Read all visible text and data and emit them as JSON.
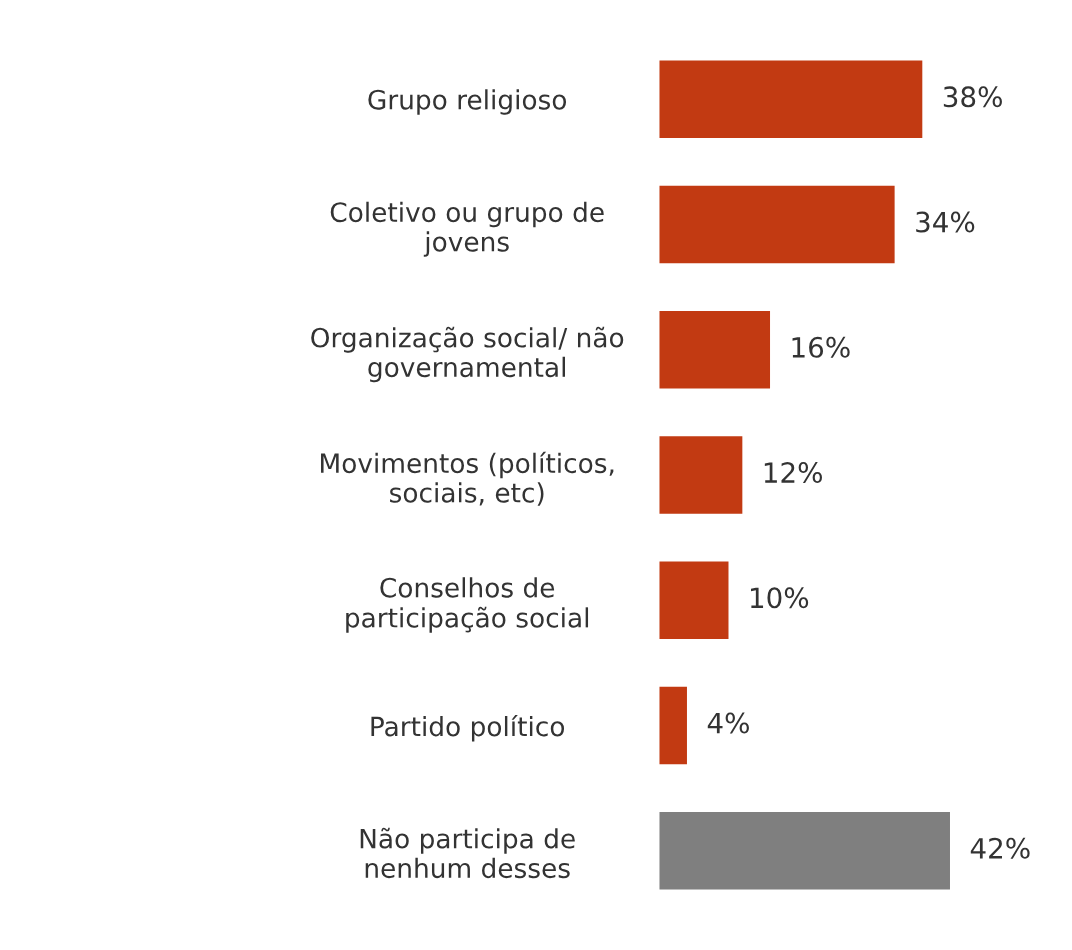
{
  "chart_data": {
    "type": "bar",
    "orientation": "horizontal",
    "categories": [
      "Grupo religioso",
      "Coletivo ou grupo de\njovens",
      "Organização social/ não\ngovernamental",
      "Movimentos (políticos,\nsociais, etc)",
      "Conselhos de\nparticipação social",
      "Partido político",
      "Não participa de\nnenhum desses"
    ],
    "values": [
      38,
      34,
      16,
      12,
      10,
      4,
      42
    ],
    "colors": [
      "#c23a12",
      "#c23a12",
      "#c23a12",
      "#c23a12",
      "#c23a12",
      "#c23a12",
      "#7f7f7f"
    ],
    "value_labels": [
      "38%",
      "34%",
      "16%",
      "12%",
      "10%",
      "4%",
      "42%"
    ],
    "grid": false,
    "legend": false
  }
}
